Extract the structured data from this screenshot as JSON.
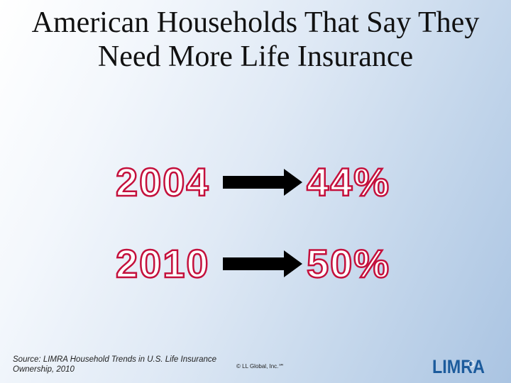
{
  "slide": {
    "title_line1": "American Households That Say They",
    "title_line2": "Need More Life Insurance",
    "rows": [
      {
        "year": "2004",
        "percent": "44%"
      },
      {
        "year": "2010",
        "percent": "50%"
      }
    ],
    "source_line1": "Source: LIMRA Household Trends in U.S. Life Insurance",
    "source_line2": "Ownership, 2010",
    "copyright": "© LL Global, Inc.℠",
    "logo": {
      "text": "LIMRA",
      "color": "#1c5b9c"
    }
  },
  "colors": {
    "accent_red": "#c4103c",
    "title_text": "#111111",
    "arrow": "#000000"
  }
}
